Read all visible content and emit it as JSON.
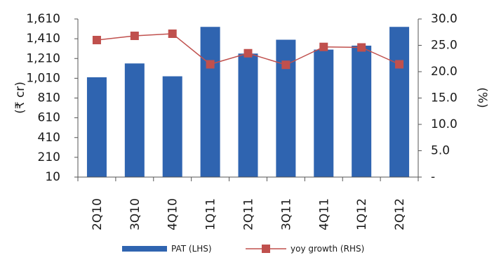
{
  "chart_data": {
    "type": "bar",
    "categories": [
      "2Q10",
      "3Q10",
      "4Q10",
      "1Q11",
      "2Q11",
      "3Q11",
      "4Q11",
      "1Q12",
      "2Q12"
    ],
    "series": [
      {
        "name": "PAT (LHS)",
        "type": "bar",
        "axis": "left",
        "color": "#2f64b0",
        "values": [
          1020,
          1160,
          1030,
          1530,
          1260,
          1400,
          1300,
          1340,
          1530
        ]
      },
      {
        "name": "yoy growth (RHS)",
        "type": "line",
        "axis": "right",
        "color": "#c0504d",
        "marker_color": "#c0504d",
        "values": [
          26.0,
          26.8,
          27.2,
          21.4,
          23.5,
          21.3,
          24.7,
          24.6,
          21.4
        ]
      }
    ],
    "left_axis": {
      "label": "(₹ cr)",
      "ylim": [
        10,
        1610
      ],
      "ticks": [
        10,
        210,
        410,
        610,
        810,
        1010,
        1210,
        1410,
        1610
      ],
      "tick_labels": [
        "10",
        "210",
        "410",
        "610",
        "810",
        "1,010",
        "1,210",
        "1,410",
        "1,610"
      ]
    },
    "right_axis": {
      "label": "(%)",
      "ylim": [
        0,
        30
      ],
      "ticks": [
        0,
        5,
        10,
        15,
        20,
        25,
        30
      ],
      "tick_labels": [
        "-",
        "5.0",
        "10.0",
        "15.0",
        "20.0",
        "25.0",
        "30.0"
      ]
    },
    "grid": false,
    "legend": {
      "placement": "bottom"
    }
  }
}
